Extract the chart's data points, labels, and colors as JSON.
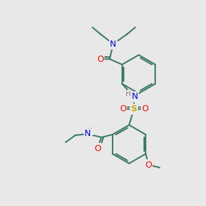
{
  "bg_color": "#e8e8e8",
  "bond_color": "#3a7a6a",
  "bond_width": 1.5,
  "atom_colors": {
    "N": "#0000ff",
    "O": "#ff0000",
    "S": "#ccaa00",
    "H": "#808080",
    "C_bond": "#3a7a6a"
  },
  "font_size_atom": 9,
  "font_size_small": 7.5
}
